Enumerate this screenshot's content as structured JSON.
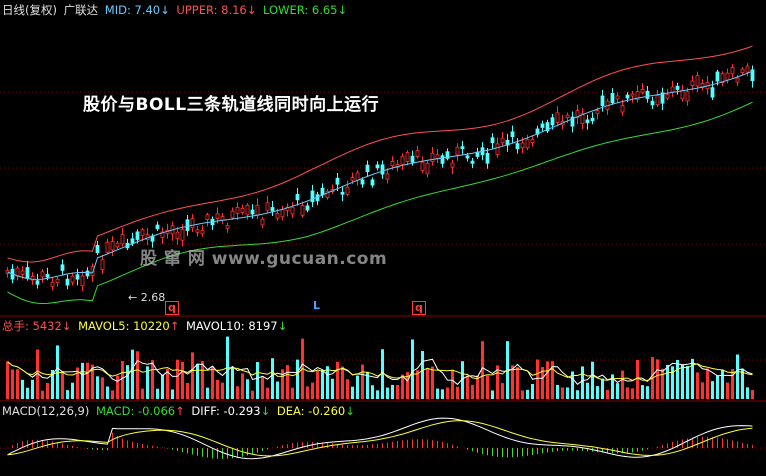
{
  "main_header": {
    "title": "日线(复权)",
    "source": "广联达",
    "mid": {
      "label": "MID: 7.40",
      "arrow": "↓"
    },
    "upper": {
      "label": "UPPER: 8.16",
      "arrow": "↓"
    },
    "lower": {
      "label": "LOWER: 6.65",
      "arrow": "↓"
    }
  },
  "annotation": "股价与BOLL三条轨道线同时向上运行",
  "watermark": "股 窜 网 www.gucuan.com",
  "low_label": "2.68",
  "markers": {
    "q1": "q",
    "q2": "q",
    "l": "L"
  },
  "volume_header": {
    "total": {
      "label": "总手: 5432",
      "arrow": "↓"
    },
    "mavol5": {
      "label": "MAVOL5: 10220",
      "arrow": "↑"
    },
    "mavol10": {
      "label": "MAVOL10: 8197",
      "arrow": "↓"
    }
  },
  "macd_header": {
    "title": "MACD(12,26,9)",
    "macd": {
      "label": "MACD: -0.066",
      "arrow": "↑"
    },
    "diff": {
      "label": "DIFF: -0.293",
      "arrow": "↓"
    },
    "dea": {
      "label": "DEA: -0.260",
      "arrow": "↓"
    }
  },
  "colors": {
    "background": "#000000",
    "up": "#ff3232",
    "down": "#54ffff",
    "mid": "#66ccff",
    "upper": "#ff5050",
    "lower": "#33dd33",
    "mavol5": "#ffffff",
    "mavol10": "#ffff33",
    "dea": "#ffff33",
    "diff": "#ffffff",
    "macd_pos": "#ff3232",
    "macd_neg": "#33dd33",
    "grid": "#8a0000"
  }
}
